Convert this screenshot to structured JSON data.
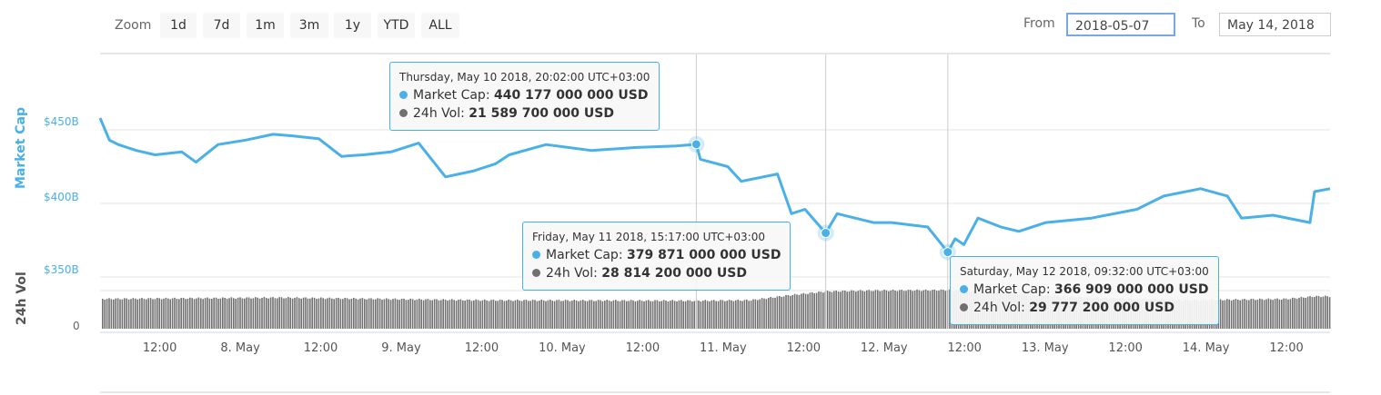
{
  "toolbar": {
    "zoom_label": "Zoom",
    "zoom_buttons": [
      "1d",
      "7d",
      "1m",
      "3m",
      "1y",
      "YTD",
      "ALL"
    ],
    "from_label": "From",
    "from_value": "2018-05-07",
    "to_label": "To",
    "to_value": "May 14, 2018"
  },
  "colors": {
    "market_cap": "#4ab0e8",
    "volume": "#707070",
    "grid": "#e6e6e6"
  },
  "chart_data": {
    "type": "line",
    "x_unit": "hours since 7 May 2018 00:00",
    "xlim": [
      3.1,
      186.5
    ],
    "x_ticks": [
      {
        "h": 12,
        "label": "12:00"
      },
      {
        "h": 24,
        "label": "8. May"
      },
      {
        "h": 36,
        "label": "12:00"
      },
      {
        "h": 48,
        "label": "9. May"
      },
      {
        "h": 60,
        "label": "12:00"
      },
      {
        "h": 72,
        "label": "10. May"
      },
      {
        "h": 84,
        "label": "12:00"
      },
      {
        "h": 96,
        "label": "11. May"
      },
      {
        "h": 108,
        "label": "12:00"
      },
      {
        "h": 120,
        "label": "12. May"
      },
      {
        "h": 132,
        "label": "12:00"
      },
      {
        "h": 144,
        "label": "13. May"
      },
      {
        "h": 156,
        "label": "12:00"
      },
      {
        "h": 168,
        "label": "14. May"
      },
      {
        "h": 180,
        "label": "12:00"
      }
    ],
    "market_cap": {
      "axis_title": "Market Cap",
      "ylim": [
        350,
        450
      ],
      "y_ticks": [
        {
          "v": 450,
          "label": "$450B"
        },
        {
          "v": 400,
          "label": "$400B"
        },
        {
          "v": 350,
          "label": "$350B"
        }
      ],
      "unit": "billion USD",
      "points": [
        [
          3.1,
          458
        ],
        [
          4.5,
          443
        ],
        [
          5.8,
          440
        ],
        [
          8.5,
          436
        ],
        [
          11.3,
          433
        ],
        [
          15.3,
          435
        ],
        [
          17.4,
          428
        ],
        [
          20.7,
          440
        ],
        [
          24.8,
          443
        ],
        [
          28.9,
          447
        ],
        [
          31.6,
          446
        ],
        [
          35.7,
          444
        ],
        [
          39.1,
          432
        ],
        [
          42.4,
          433
        ],
        [
          46.5,
          435
        ],
        [
          50.6,
          441
        ],
        [
          54.6,
          418
        ],
        [
          58.7,
          422
        ],
        [
          62.1,
          427
        ],
        [
          64.1,
          433
        ],
        [
          69.6,
          440
        ],
        [
          76.3,
          436
        ],
        [
          83.1,
          438
        ],
        [
          89,
          439
        ],
        [
          92.0,
          440.2
        ],
        [
          92.6,
          430
        ],
        [
          96.7,
          425
        ],
        [
          98.7,
          415
        ],
        [
          104.1,
          420
        ],
        [
          106.2,
          393
        ],
        [
          108.2,
          396
        ],
        [
          111.3,
          379.9
        ],
        [
          113.0,
          393
        ],
        [
          118.4,
          387
        ],
        [
          121.1,
          387
        ],
        [
          126.5,
          384
        ],
        [
          129.5,
          366.9
        ],
        [
          130.6,
          376
        ],
        [
          131.9,
          372
        ],
        [
          134.0,
          390
        ],
        [
          137.4,
          384
        ],
        [
          140.1,
          381
        ],
        [
          144.1,
          387
        ],
        [
          150.9,
          390
        ],
        [
          157.7,
          396
        ],
        [
          161.7,
          405
        ],
        [
          167.2,
          410
        ],
        [
          171.2,
          405
        ],
        [
          173.3,
          390
        ],
        [
          178.0,
          392
        ],
        [
          183.5,
          387
        ],
        [
          184.2,
          408
        ],
        [
          186.5,
          410
        ]
      ]
    },
    "volume": {
      "axis_title": "24h Vol",
      "y_ticks": [
        {
          "v": 0,
          "label": "0"
        }
      ],
      "ylim": [
        0,
        40
      ],
      "unit": "billion USD",
      "points": [
        [
          3.1,
          23
        ],
        [
          30,
          24
        ],
        [
          60,
          22
        ],
        [
          92,
          21.6
        ],
        [
          100,
          22
        ],
        [
          106,
          26
        ],
        [
          111.3,
          28.8
        ],
        [
          118,
          29.5
        ],
        [
          129.5,
          29.8
        ],
        [
          140,
          27
        ],
        [
          150,
          24
        ],
        [
          165,
          22
        ],
        [
          180,
          23
        ],
        [
          184,
          25
        ],
        [
          186.5,
          25
        ]
      ]
    },
    "tooltips": [
      {
        "title": "Thursday, May 10 2018, 20:02:00 UTC+03:00",
        "h": 92.0,
        "cap_label": "Market Cap:",
        "cap_value": "440 177 000 000 USD",
        "vol_label": "24h Vol:",
        "vol_value": "21 589 700 000 USD"
      },
      {
        "title": "Friday, May 11 2018, 15:17:00 UTC+03:00",
        "h": 111.3,
        "cap_label": "Market Cap:",
        "cap_value": "379 871 000 000 USD",
        "vol_label": "24h Vol:",
        "vol_value": "28 814 200 000 USD"
      },
      {
        "title": "Saturday, May 12 2018, 09:32:00 UTC+03:00",
        "h": 129.5,
        "cap_label": "Market Cap:",
        "cap_value": "366 909 000 000 USD",
        "vol_label": "24h Vol:",
        "vol_value": "29 777 200 000 USD"
      }
    ]
  }
}
